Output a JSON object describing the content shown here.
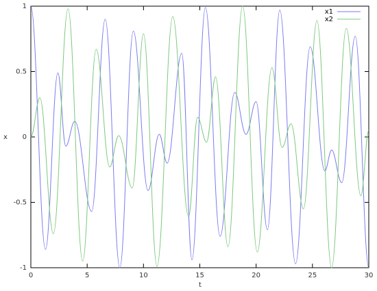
{
  "chart_data": {
    "type": "line",
    "x_label": "t",
    "y_label": "x",
    "xlim": [
      0,
      30
    ],
    "ylim": [
      -1,
      1
    ],
    "xticks": [
      0,
      5,
      10,
      15,
      20,
      25,
      30
    ],
    "yticks": [
      -1,
      -0.5,
      0,
      0.5,
      1
    ],
    "grid": false,
    "legend": "top-right",
    "series": [
      {
        "name": "x1",
        "color": "#7a7af0",
        "x": [
          0,
          1.3,
          2.4,
          3.1,
          3.9,
          5.4,
          6.6,
          7.9,
          9.1,
          10.4,
          11.4,
          12.1,
          13.4,
          14.3,
          15.5,
          16.8,
          18.1,
          19.1,
          20,
          21,
          22.1,
          23.5,
          24.8,
          26.1,
          26.7,
          27.6,
          28.8,
          30
        ],
        "values": [
          1,
          -0.86,
          0.49,
          -0.07,
          0.12,
          -0.57,
          0.9,
          -1,
          0.81,
          -0.41,
          0.02,
          -0.2,
          0.64,
          -0.94,
          0.99,
          -0.76,
          0.34,
          0.02,
          0.27,
          -0.71,
          0.97,
          -0.97,
          0.69,
          -0.26,
          -0.1,
          -0.35,
          0.77,
          -1
        ]
      },
      {
        "name": "x2",
        "color": "#7cc87c",
        "x": [
          0,
          0.8,
          2,
          3.3,
          4.6,
          5.8,
          7,
          7.8,
          9,
          10,
          11.2,
          12.6,
          14,
          14.8,
          15.6,
          16.4,
          17.5,
          18.8,
          20.1,
          21.4,
          22.3,
          23.1,
          24.2,
          25.4,
          26.7,
          28,
          29.3,
          30
        ],
        "values": [
          0,
          0.3,
          -0.74,
          0.98,
          -0.95,
          0.67,
          -0.23,
          0.01,
          -0.39,
          0.79,
          -0.99,
          0.92,
          -0.61,
          0.15,
          -0.04,
          0.46,
          -0.84,
          1,
          -0.88,
          0.53,
          -0.08,
          0.1,
          -0.55,
          0.89,
          -1,
          0.83,
          -0.45,
          0.05
        ]
      }
    ]
  }
}
